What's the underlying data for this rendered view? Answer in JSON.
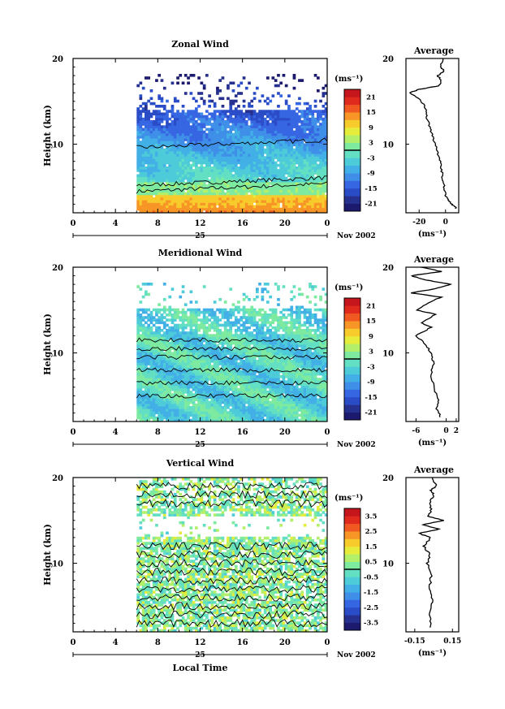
{
  "chart_data": [
    {
      "type": "heatmap",
      "title": "Zonal Wind",
      "ylabel": "Height (km)",
      "ylim": [
        2,
        20
      ],
      "xlim": [
        0,
        24
      ],
      "x_ticks": [
        "0",
        "4",
        "8",
        "12",
        "16",
        "20",
        "0"
      ],
      "y_ticks": [
        "10",
        "20"
      ],
      "date_label": "25",
      "month_label": "Nov 2002",
      "colorbar": {
        "unit": "(ms⁻¹)",
        "ticks": [
          "21",
          "15",
          "9",
          "3",
          "-3",
          "-9",
          "-15",
          "-21"
        ],
        "range": [
          -24,
          24
        ]
      },
      "profile": {
        "title": "Average",
        "x_ticks": [
          "-20",
          "0"
        ],
        "xlim": [
          -30,
          10
        ],
        "xunit": "(ms⁻¹)",
        "points": [
          [
            8,
            2.5
          ],
          [
            5,
            3
          ],
          [
            2,
            3.5
          ],
          [
            0,
            4
          ],
          [
            -1,
            5
          ],
          [
            -2,
            6
          ],
          [
            -3,
            7
          ],
          [
            -4,
            8
          ],
          [
            -6,
            9
          ],
          [
            -8,
            10
          ],
          [
            -10,
            11
          ],
          [
            -12,
            12
          ],
          [
            -14,
            13
          ],
          [
            -15,
            14
          ],
          [
            -18,
            15
          ],
          [
            -27,
            16
          ],
          [
            -20,
            16.4
          ],
          [
            -5,
            16.8
          ],
          [
            -3,
            17.5
          ],
          [
            -6,
            18
          ],
          [
            -1,
            18.5
          ],
          [
            -4,
            19
          ],
          [
            -2,
            20
          ]
        ]
      },
      "data_start_hour": 6
    },
    {
      "type": "heatmap",
      "title": "Meridional Wind",
      "ylabel": "Height (km)",
      "ylim": [
        2,
        20
      ],
      "xlim": [
        0,
        24
      ],
      "x_ticks": [
        "0",
        "4",
        "8",
        "12",
        "16",
        "20",
        "0"
      ],
      "y_ticks": [
        "10",
        "20"
      ],
      "date_label": "25",
      "month_label": "Nov 2002",
      "colorbar": {
        "unit": "(ms⁻¹)",
        "ticks": [
          "21",
          "15",
          "9",
          "3",
          "-3",
          "-9",
          "-15",
          "-21"
        ],
        "range": [
          -24,
          24
        ]
      },
      "profile": {
        "title": "Average",
        "x_ticks": [
          "-6",
          "0",
          "2"
        ],
        "xlim": [
          -8,
          2.5
        ],
        "xunit": "(ms⁻¹)",
        "points": [
          [
            -1,
            2.5
          ],
          [
            -2,
            3.5
          ],
          [
            -1.5,
            4.5
          ],
          [
            -2.5,
            6
          ],
          [
            -3,
            7.5
          ],
          [
            -2.5,
            9
          ],
          [
            -3,
            10
          ],
          [
            -4,
            11
          ],
          [
            -6,
            12
          ],
          [
            -3,
            13
          ],
          [
            -5,
            13.5
          ],
          [
            -2,
            14.5
          ],
          [
            -6,
            15
          ],
          [
            -3,
            16
          ],
          [
            -1,
            16.5
          ],
          [
            -7,
            17
          ],
          [
            -2,
            17.5
          ],
          [
            1,
            18
          ],
          [
            -4,
            18.5
          ],
          [
            -7,
            19
          ],
          [
            -1,
            19.5
          ],
          [
            -5,
            20
          ]
        ]
      },
      "data_start_hour": 6
    },
    {
      "type": "heatmap",
      "title": "Vertical Wind",
      "ylabel": "Height (km)",
      "xlabel": "Local Time",
      "ylim": [
        2,
        20
      ],
      "xlim": [
        0,
        24
      ],
      "x_ticks": [
        "0",
        "4",
        "8",
        "12",
        "16",
        "20",
        "0"
      ],
      "y_ticks": [
        "10",
        "20"
      ],
      "date_label": "25",
      "month_label": "Nov 2002",
      "colorbar": {
        "unit": "(ms⁻¹)",
        "ticks": [
          "3.5",
          "2.5",
          "1.5",
          "0.5",
          "-0.5",
          "-1.5",
          "-2.5",
          "-3.5"
        ],
        "range": [
          -4,
          4
        ]
      },
      "profile": {
        "title": "Average",
        "x_ticks": [
          "-0.15",
          "0.15"
        ],
        "xlim": [
          -0.22,
          0.2
        ],
        "xunit": "(ms⁻¹)",
        "points": [
          [
            -0.02,
            2.5
          ],
          [
            -0.03,
            4
          ],
          [
            -0.01,
            5.5
          ],
          [
            -0.03,
            7
          ],
          [
            -0.02,
            8.5
          ],
          [
            -0.05,
            10
          ],
          [
            -0.03,
            11
          ],
          [
            -0.08,
            12
          ],
          [
            -0.02,
            13
          ],
          [
            -0.12,
            13.5
          ],
          [
            0.05,
            14
          ],
          [
            -0.09,
            14.5
          ],
          [
            0.08,
            15
          ],
          [
            -0.05,
            15.5
          ],
          [
            -0.02,
            16
          ],
          [
            -0.03,
            17
          ],
          [
            0,
            18
          ],
          [
            -0.02,
            18.5
          ],
          [
            0.02,
            19
          ],
          [
            -0.01,
            20
          ]
        ]
      },
      "data_start_hour": 6
    }
  ],
  "colormap": [
    "#1b1a6e",
    "#26308f",
    "#2a4cc6",
    "#3766e3",
    "#3f8fe8",
    "#42b0e6",
    "#4ecbd8",
    "#63dfc3",
    "#7deaa0",
    "#b4ef6a",
    "#e6ec3c",
    "#f8cb2c",
    "#f79526",
    "#f05a22",
    "#e02a1e",
    "#c4161c"
  ]
}
